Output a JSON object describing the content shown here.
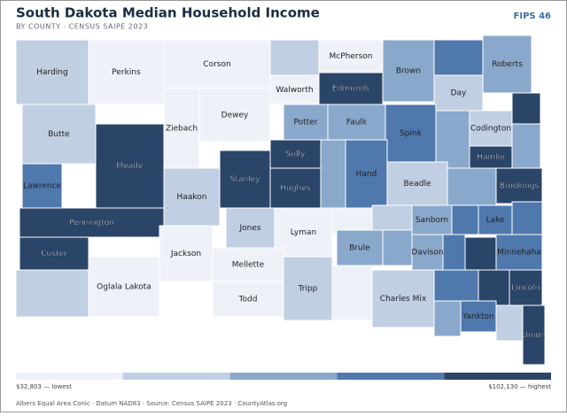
{
  "header": {
    "title": "South Dakota Median Household Income",
    "subtitle": "BY COUNTY · CENSUS SAIPE 2023",
    "badge": "FIPS 46"
  },
  "map": {
    "counties": [
      {
        "name": "Harding",
        "color": "#c0cfe2"
      },
      {
        "name": "Perkins",
        "color": "#eef2f8"
      },
      {
        "name": "Corson",
        "color": "#eef2f8"
      },
      {
        "name": null,
        "color": "#c0cfe2"
      },
      {
        "name": "McPherson",
        "color": "#eef2f8"
      },
      {
        "name": "Brown",
        "color": "#8aa8cb"
      },
      {
        "name": null,
        "color": "#4f78ad"
      },
      {
        "name": "Roberts",
        "color": "#8aa8cb"
      },
      {
        "name": "Walworth",
        "color": "#eef2f8"
      },
      {
        "name": "Edmunds",
        "color": "#2b4569"
      },
      {
        "name": "Day",
        "color": "#c0cfe2"
      },
      {
        "name": "Butte",
        "color": "#c0cfe2"
      },
      {
        "name": "Meade",
        "color": "#2b4569"
      },
      {
        "name": "Ziebach",
        "color": "#eef2f8"
      },
      {
        "name": "Dewey",
        "color": "#eef2f8"
      },
      {
        "name": "Potter",
        "color": "#8aa8cb"
      },
      {
        "name": "Faulk",
        "color": "#8aa8cb"
      },
      {
        "name": "Spink",
        "color": "#4f78ad"
      },
      {
        "name": null,
        "color": "#8aa8cb"
      },
      {
        "name": "Codington",
        "color": "#c0cfe2"
      },
      {
        "name": null,
        "color": "#2b4569"
      },
      {
        "name": null,
        "color": "#8aa8cb"
      },
      {
        "name": "Hamlin",
        "color": "#2b4569"
      },
      {
        "name": "Sully",
        "color": "#2b4569"
      },
      {
        "name": "Hughes",
        "color": "#2b4569"
      },
      {
        "name": "Stanley",
        "color": "#2b4569"
      },
      {
        "name": null,
        "color": "#8aa8cb"
      },
      {
        "name": "Hand",
        "color": "#4f78ad"
      },
      {
        "name": "Beadle",
        "color": "#c0cfe2"
      },
      {
        "name": null,
        "color": "#8aa8cb"
      },
      {
        "name": "Brookings",
        "color": "#2b4569"
      },
      {
        "name": "Lawrence",
        "color": "#4f78ad"
      },
      {
        "name": "Pennington",
        "color": "#2b4569"
      },
      {
        "name": "Custer",
        "color": "#2b4569"
      },
      {
        "name": "Haakon",
        "color": "#c0cfe2"
      },
      {
        "name": "Jones",
        "color": "#c0cfe2"
      },
      {
        "name": "Lyman",
        "color": "#eef2f8"
      },
      {
        "name": null,
        "color": "#eef2f8"
      },
      {
        "name": null,
        "color": "#c0cfe2"
      },
      {
        "name": "Sanborn",
        "color": "#8aa8cb"
      },
      {
        "name": null,
        "color": "#4f78ad"
      },
      {
        "name": "Lake",
        "color": "#4f78ad"
      },
      {
        "name": null,
        "color": "#4f78ad"
      },
      {
        "name": null,
        "color": "#c0cfe2"
      },
      {
        "name": "Oglala Lakota",
        "color": "#eef2f8"
      },
      {
        "name": "Jackson",
        "color": "#eef2f8"
      },
      {
        "name": "Mellette",
        "color": "#eef2f8"
      },
      {
        "name": "Todd",
        "color": "#eef2f8"
      },
      {
        "name": "Tripp",
        "color": "#c0cfe2"
      },
      {
        "name": "Brule",
        "color": "#8aa8cb"
      },
      {
        "name": null,
        "color": "#8aa8cb"
      },
      {
        "name": "Davison",
        "color": "#8aa8cb"
      },
      {
        "name": null,
        "color": "#4f78ad"
      },
      {
        "name": null,
        "color": "#2b4569"
      },
      {
        "name": "Minnehaha",
        "color": "#4f78ad"
      },
      {
        "name": null,
        "color": "#eef2f8"
      },
      {
        "name": "Charles Mix",
        "color": "#c0cfe2"
      },
      {
        "name": null,
        "color": "#4f78ad"
      },
      {
        "name": null,
        "color": "#2b4569"
      },
      {
        "name": "Lincoln",
        "color": "#2b4569"
      },
      {
        "name": null,
        "color": "#8aa8cb"
      },
      {
        "name": "Yankton",
        "color": "#4f78ad"
      },
      {
        "name": null,
        "color": "#c0cfe2"
      },
      {
        "name": "Union",
        "color": "#2b4569"
      }
    ]
  },
  "legend": {
    "colors": [
      "#eef2f8",
      "#c0cfe2",
      "#8aa8cb",
      "#4f78ad",
      "#2b4569"
    ],
    "min_label": "$32,803 — lowest",
    "max_label": "$102,130 — highest"
  },
  "footer": "Albers Equal Area Conic · Datum NAD83 · Source: Census SAIPE 2023 · CountyAtlas.org"
}
